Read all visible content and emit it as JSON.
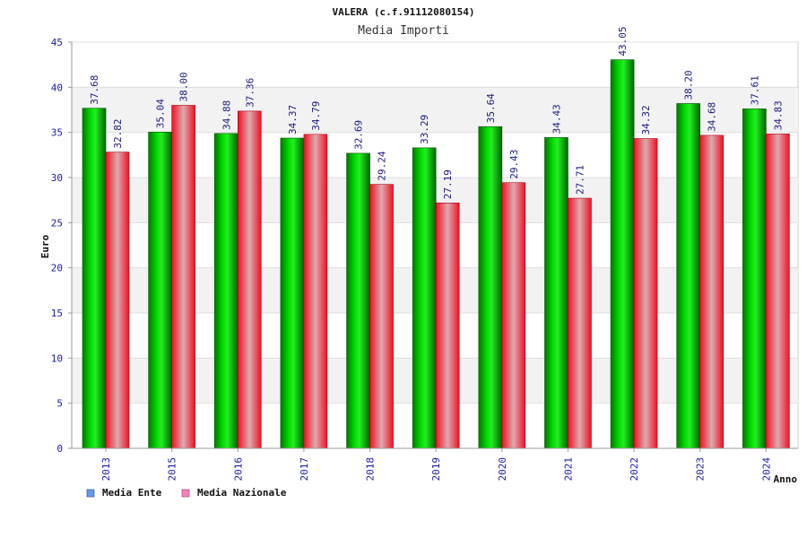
{
  "chart_data": {
    "type": "bar",
    "title": "VALERA (c.f.91112080154)",
    "subtitle": "Media Importi",
    "xlabel": "Anno",
    "ylabel": "Euro",
    "ylim": [
      0,
      45
    ],
    "yticks": [
      "0",
      "5",
      "10",
      "15",
      "20",
      "25",
      "30",
      "35",
      "40",
      "45"
    ],
    "categories": [
      "2013",
      "2015",
      "2016",
      "2017",
      "2018",
      "2019",
      "2020",
      "2021",
      "2022",
      "2023",
      "2024"
    ],
    "series": [
      {
        "name": "Media Ente",
        "values": [
          37.68,
          35.04,
          34.88,
          34.37,
          32.69,
          33.29,
          35.64,
          34.43,
          43.05,
          38.2,
          37.61
        ],
        "labels": [
          "37.68",
          "35.04",
          "34.88",
          "34.37",
          "32.69",
          "33.29",
          "35.64",
          "34.43",
          "43.05",
          "38.20",
          "37.61"
        ],
        "color": "#00bb00",
        "legend_color": "#6699ee"
      },
      {
        "name": "Media Nazionale",
        "values": [
          32.82,
          38.0,
          37.36,
          34.79,
          29.24,
          27.19,
          29.43,
          27.71,
          34.32,
          34.68,
          34.83
        ],
        "labels": [
          "32.82",
          "38.00",
          "37.36",
          "34.79",
          "29.24",
          "27.19",
          "29.43",
          "27.71",
          "34.32",
          "34.68",
          "34.83"
        ],
        "color": "#ee1122",
        "legend_color": "#ee88bb"
      }
    ],
    "grid": true,
    "legend": "bottom-left"
  }
}
